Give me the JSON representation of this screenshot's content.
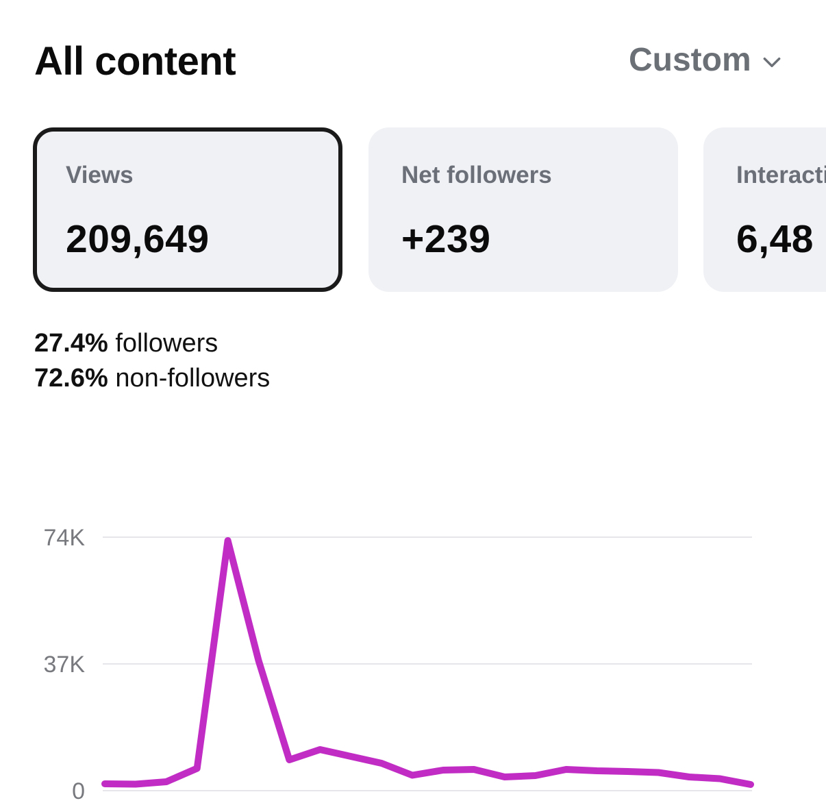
{
  "header": {
    "title": "All content",
    "range_label": "Custom"
  },
  "cards": [
    {
      "label": "Views",
      "value": "209,649",
      "selected": true
    },
    {
      "label": "Net followers",
      "value": "+239",
      "selected": false
    },
    {
      "label": "Interactions",
      "value": "6,48",
      "selected": false
    }
  ],
  "breakdown": {
    "followers_pct": "27.4%",
    "followers_label": "followers",
    "non_followers_pct": "72.6%",
    "non_followers_label": "non-followers"
  },
  "colors": {
    "line": "#c02cc4",
    "gridline": "#e6e6ea",
    "selected_border": "#1a1a1a",
    "card_bg": "#f0f1f5"
  },
  "icons": {
    "range_select": "chevron-down-icon"
  },
  "chart_data": {
    "type": "line",
    "y_ticks": [
      {
        "value": 0,
        "label": "0"
      },
      {
        "value": 37000,
        "label": "37K"
      },
      {
        "value": 74000,
        "label": "74K"
      }
    ],
    "ylim": [
      0,
      74000
    ],
    "grid": true,
    "series": [
      {
        "values": [
          2000,
          1900,
          2600,
          6500,
          73000,
          38000,
          9000,
          12000,
          10000,
          8000,
          4500,
          6000,
          6200,
          4000,
          4400,
          6200,
          5800,
          5600,
          5300,
          4000,
          3500,
          1800
        ]
      }
    ]
  }
}
